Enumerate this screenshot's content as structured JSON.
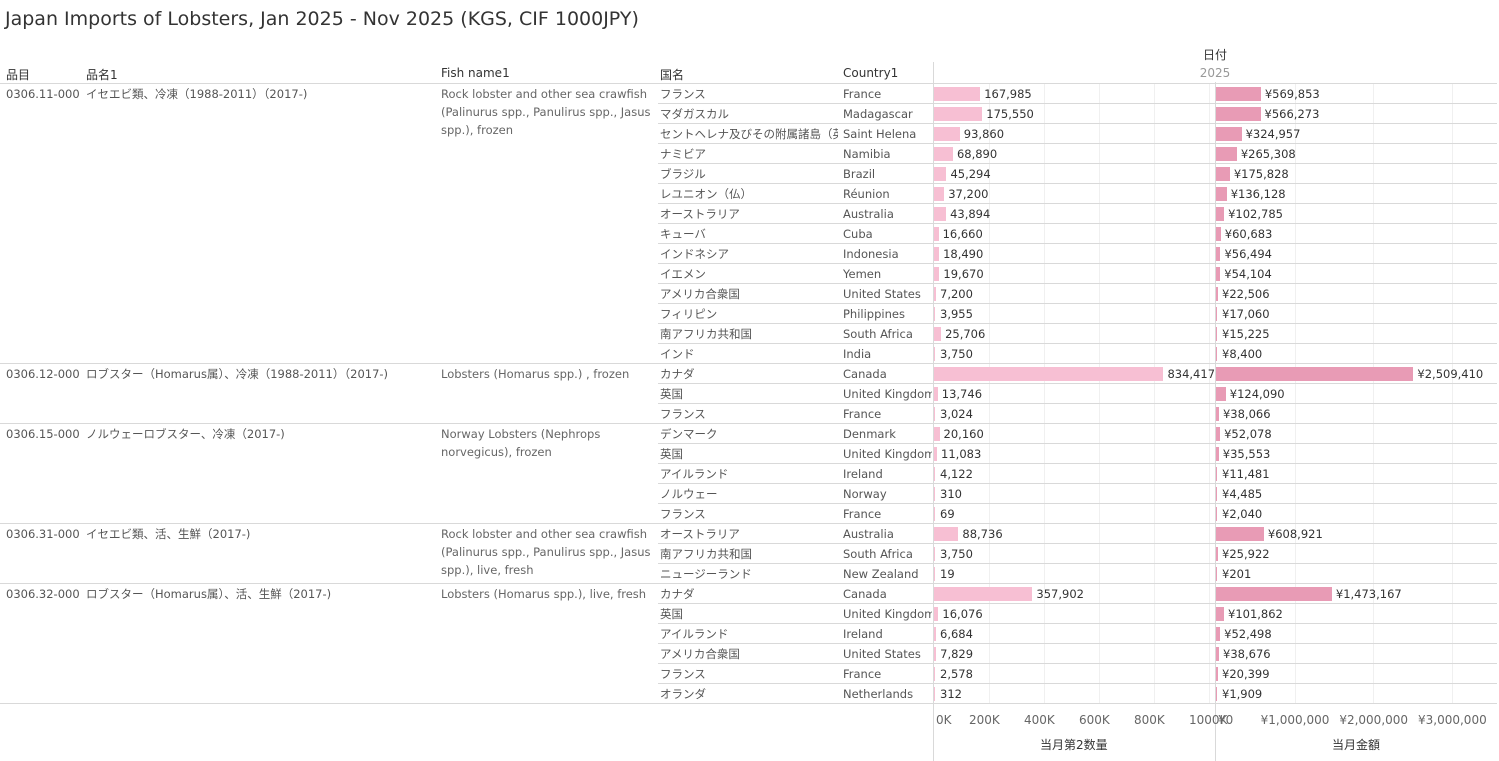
{
  "title": "Japan Imports of Lobsters, Jan 2025 - Nov 2025 (KGS, CIF 1000JPY)",
  "date_header": "日付",
  "year_header": "2025",
  "columns": {
    "code": "品目",
    "name_jp": "品名1",
    "fish_name": "Fish name1",
    "country_jp": "国名",
    "country_en": "Country1"
  },
  "chart_data": {
    "type": "bar",
    "measures": [
      {
        "name": "当月第2数量",
        "axis_range": [
          0,
          1000000
        ],
        "ticks": [
          "0K",
          "200K",
          "400K",
          "600K",
          "800K",
          "1000K"
        ]
      },
      {
        "name": "当月金額",
        "axis_range": [
          0,
          3000000
        ],
        "ticks": [
          "¥0",
          "¥1,000,000",
          "¥2,000,000",
          "¥3,000,000"
        ]
      }
    ],
    "groups": [
      {
        "code": "0306.11-000",
        "name_jp": "イセエビ類、冷凍（1988-2011）（2017-)",
        "fish_name": "Rock lobster and other sea crawfish (Palinurus spp., Panulirus spp., Jasus spp.), frozen",
        "rows": [
          {
            "country_jp": "フランス",
            "country_en": "France",
            "qty": 167985,
            "qty_label": "167,985",
            "amt": 569853,
            "amt_label": "¥569,853"
          },
          {
            "country_jp": "マダガスカル",
            "country_en": "Madagascar",
            "qty": 175550,
            "qty_label": "175,550",
            "amt": 566273,
            "amt_label": "¥566,273"
          },
          {
            "country_jp": "セントヘレナ及びその附属諸島（英..",
            "country_en": "Saint Helena",
            "qty": 93860,
            "qty_label": "93,860",
            "amt": 324957,
            "amt_label": "¥324,957"
          },
          {
            "country_jp": "ナミビア",
            "country_en": "Namibia",
            "qty": 68890,
            "qty_label": "68,890",
            "amt": 265308,
            "amt_label": "¥265,308"
          },
          {
            "country_jp": "ブラジル",
            "country_en": "Brazil",
            "qty": 45294,
            "qty_label": "45,294",
            "amt": 175828,
            "amt_label": "¥175,828"
          },
          {
            "country_jp": "レユニオン（仏）",
            "country_en": "Réunion",
            "qty": 37200,
            "qty_label": "37,200",
            "amt": 136128,
            "amt_label": "¥136,128"
          },
          {
            "country_jp": "オーストラリア",
            "country_en": "Australia",
            "qty": 43894,
            "qty_label": "43,894",
            "amt": 102785,
            "amt_label": "¥102,785"
          },
          {
            "country_jp": "キューバ",
            "country_en": "Cuba",
            "qty": 16660,
            "qty_label": "16,660",
            "amt": 60683,
            "amt_label": "¥60,683"
          },
          {
            "country_jp": "インドネシア",
            "country_en": "Indonesia",
            "qty": 18490,
            "qty_label": "18,490",
            "amt": 56494,
            "amt_label": "¥56,494"
          },
          {
            "country_jp": "イエメン",
            "country_en": "Yemen",
            "qty": 19670,
            "qty_label": "19,670",
            "amt": 54104,
            "amt_label": "¥54,104"
          },
          {
            "country_jp": "アメリカ合衆国",
            "country_en": "United States",
            "qty": 7200,
            "qty_label": "7,200",
            "amt": 22506,
            "amt_label": "¥22,506"
          },
          {
            "country_jp": "フィリピン",
            "country_en": "Philippines",
            "qty": 3955,
            "qty_label": "3,955",
            "amt": 17060,
            "amt_label": "¥17,060"
          },
          {
            "country_jp": "南アフリカ共和国",
            "country_en": "South Africa",
            "qty": 25706,
            "qty_label": "25,706",
            "amt": 15225,
            "amt_label": "¥15,225"
          },
          {
            "country_jp": "インド",
            "country_en": "India",
            "qty": 3750,
            "qty_label": "3,750",
            "amt": 8400,
            "amt_label": "¥8,400"
          }
        ]
      },
      {
        "code": "0306.12-000",
        "name_jp": "ロブスター（Homarus属）、冷凍（1988-2011）（2017-)",
        "fish_name": "Lobsters (Homarus spp.) , frozen",
        "rows": [
          {
            "country_jp": "カナダ",
            "country_en": "Canada",
            "qty": 834417,
            "qty_label": "834,417",
            "amt": 2509410,
            "amt_label": "¥2,509,410"
          },
          {
            "country_jp": "英国",
            "country_en": "United Kingdom",
            "qty": 13746,
            "qty_label": "13,746",
            "amt": 124090,
            "amt_label": "¥124,090"
          },
          {
            "country_jp": "フランス",
            "country_en": "France",
            "qty": 3024,
            "qty_label": "3,024",
            "amt": 38066,
            "amt_label": "¥38,066"
          }
        ]
      },
      {
        "code": "0306.15-000",
        "name_jp": "ノルウェーロブスター、冷凍（2017-)",
        "fish_name": "Norway Lobsters (Nephrops norvegicus), frozen",
        "rows": [
          {
            "country_jp": "デンマーク",
            "country_en": "Denmark",
            "qty": 20160,
            "qty_label": "20,160",
            "amt": 52078,
            "amt_label": "¥52,078"
          },
          {
            "country_jp": "英国",
            "country_en": "United Kingdom",
            "qty": 11083,
            "qty_label": "11,083",
            "amt": 35553,
            "amt_label": "¥35,553"
          },
          {
            "country_jp": "アイルランド",
            "country_en": "Ireland",
            "qty": 4122,
            "qty_label": "4,122",
            "amt": 11481,
            "amt_label": "¥11,481"
          },
          {
            "country_jp": "ノルウェー",
            "country_en": "Norway",
            "qty": 310,
            "qty_label": "310",
            "amt": 4485,
            "amt_label": "¥4,485"
          },
          {
            "country_jp": "フランス",
            "country_en": "France",
            "qty": 69,
            "qty_label": "69",
            "amt": 2040,
            "amt_label": "¥2,040"
          }
        ]
      },
      {
        "code": "0306.31-000",
        "name_jp": "イセエビ類、活、生鮮（2017-)",
        "fish_name": "Rock lobster and other sea crawfish (Palinurus spp., Panulirus spp., Jasus spp.), live, fresh",
        "rows": [
          {
            "country_jp": "オーストラリア",
            "country_en": "Australia",
            "qty": 88736,
            "qty_label": "88,736",
            "amt": 608921,
            "amt_label": "¥608,921"
          },
          {
            "country_jp": "南アフリカ共和国",
            "country_en": "South Africa",
            "qty": 3750,
            "qty_label": "3,750",
            "amt": 25922,
            "amt_label": "¥25,922"
          },
          {
            "country_jp": "ニュージーランド",
            "country_en": "New Zealand",
            "qty": 19,
            "qty_label": "19",
            "amt": 201,
            "amt_label": "¥201"
          }
        ]
      },
      {
        "code": "0306.32-000",
        "name_jp": "ロブスター（Homarus属）、活、生鮮（2017-)",
        "fish_name": "Lobsters (Homarus spp.), live, fresh",
        "rows": [
          {
            "country_jp": "カナダ",
            "country_en": "Canada",
            "qty": 357902,
            "qty_label": "357,902",
            "amt": 1473167,
            "amt_label": "¥1,473,167"
          },
          {
            "country_jp": "英国",
            "country_en": "United Kingdom",
            "qty": 16076,
            "qty_label": "16,076",
            "amt": 101862,
            "amt_label": "¥101,862"
          },
          {
            "country_jp": "アイルランド",
            "country_en": "Ireland",
            "qty": 6684,
            "qty_label": "6,684",
            "amt": 52498,
            "amt_label": "¥52,498"
          },
          {
            "country_jp": "アメリカ合衆国",
            "country_en": "United States",
            "qty": 7829,
            "qty_label": "7,829",
            "amt": 38676,
            "amt_label": "¥38,676"
          },
          {
            "country_jp": "フランス",
            "country_en": "France",
            "qty": 2578,
            "qty_label": "2,578",
            "amt": 20399,
            "amt_label": "¥20,399"
          },
          {
            "country_jp": "オランダ",
            "country_en": "Netherlands",
            "qty": 312,
            "qty_label": "312",
            "amt": 1909,
            "amt_label": "¥1,909"
          }
        ]
      }
    ]
  }
}
